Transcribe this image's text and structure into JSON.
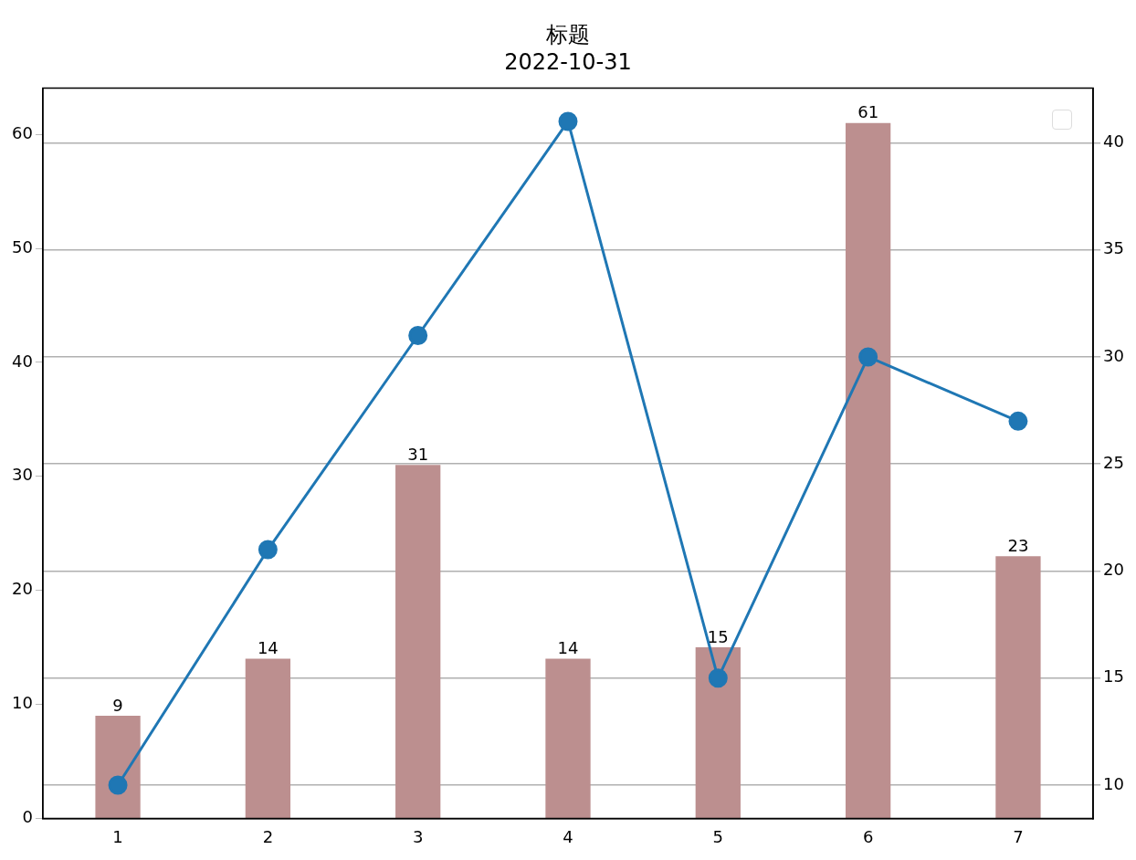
{
  "chart_data": {
    "type": "bar",
    "title": "标题",
    "subtitle": "2022-10-31",
    "categories": [
      "1",
      "2",
      "3",
      "4",
      "5",
      "6",
      "7"
    ],
    "series": [
      {
        "color": "#bc8f8f",
        "values": [
          9,
          14,
          31,
          14,
          15,
          61,
          23
        ],
        "value_labels": [
          "9",
          "14",
          "31",
          "14",
          "15",
          "61",
          "23"
        ]
      },
      {
        "type": "line",
        "axis": "y2",
        "color": "#1f77b4",
        "values": [
          10,
          21,
          31,
          41,
          15,
          30,
          27
        ],
        "marker": "circle"
      }
    ],
    "ylim": [
      0,
      64.05
    ],
    "yticks": [
      0,
      10,
      20,
      30,
      40,
      50,
      60
    ],
    "y2lim": [
      8.45,
      42.55
    ],
    "y2ticks": [
      10,
      15,
      20,
      25,
      30,
      35,
      40
    ],
    "grid": "y2",
    "legend": false
  }
}
